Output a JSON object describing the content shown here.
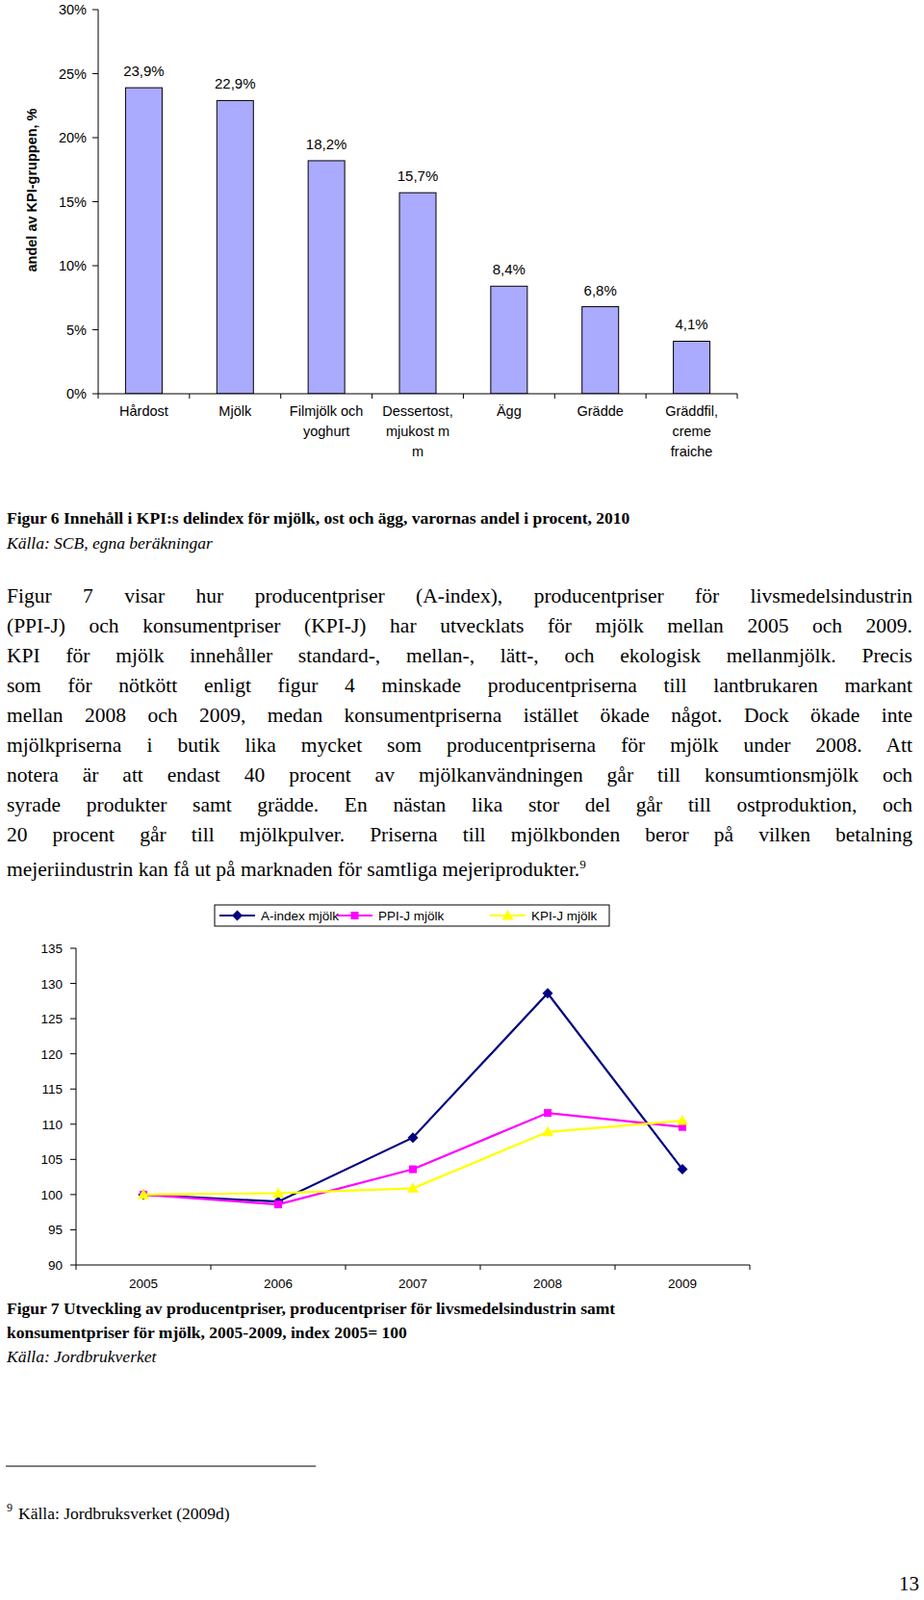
{
  "chart_data": [
    {
      "type": "bar",
      "y_label": "andel av KPI-gruppen, %",
      "categories": [
        "Hårdost",
        "Mjölk",
        "Filmjölk och\nyoghurt",
        "Dessertost,\nmjukost m\nm",
        "Ägg",
        "Grädde",
        "Gräddfil,\ncreme\nfraiche"
      ],
      "values": [
        23.9,
        22.9,
        18.2,
        15.7,
        8.4,
        6.8,
        4.1
      ],
      "value_labels": [
        "23,9%",
        "22,9%",
        "18,2%",
        "15,7%",
        "8,4%",
        "6,8%",
        "4,1%"
      ],
      "data_labels": true,
      "color": "#aaaaff",
      "ylim": [
        0,
        30
      ],
      "yticks": [
        {
          "value": 0,
          "label": "0%"
        },
        {
          "value": 5,
          "label": "5%"
        },
        {
          "value": 10,
          "label": "10%"
        },
        {
          "value": 15,
          "label": "15%"
        },
        {
          "value": 20,
          "label": "20%"
        },
        {
          "value": 25,
          "label": "25%"
        },
        {
          "value": 30,
          "label": "30%"
        }
      ],
      "grid": false
    },
    {
      "type": "line",
      "categories": [
        "2005",
        "2006",
        "2007",
        "2008",
        "2009"
      ],
      "series": [
        {
          "name": "A-index mjölk",
          "color": "#000080",
          "marker": "diamond",
          "values": [
            100,
            99.0,
            108.1,
            128.6,
            103.6
          ]
        },
        {
          "name": "PPI-J mjölk",
          "color": "#ff00ff",
          "marker": "square",
          "values": [
            100,
            98.6,
            103.6,
            111.6,
            109.6
          ]
        },
        {
          "name": "KPI-J mjölk",
          "color": "#ffff00",
          "marker": "triangle",
          "values": [
            100,
            100.2,
            100.9,
            108.9,
            110.5
          ]
        }
      ],
      "ylim": [
        90,
        135
      ],
      "yticks": [
        90,
        95,
        100,
        105,
        110,
        115,
        120,
        125,
        130,
        135
      ],
      "legend": "top",
      "grid": false
    }
  ],
  "document": {
    "figure6_caption": {
      "title": "Figur 6 Innehåll i KPI:s delindex för mjölk, ost och ägg, varornas andel i procent, 2010",
      "source": "Källa: SCB, egna beräkningar"
    },
    "paragraph": {
      "lines": [
        "Figur 7 visar hur producentpriser (A-index), producentpriser för livsmedelsindustrin",
        "(PPI-J) och konsumentpriser (KPI-J) har utvecklats för mjölk mellan 2005 och 2009.",
        "KPI för mjölk innehåller standard-, mellan-, lätt-, och ekologisk mellanmjölk. Precis",
        "som för nötkött enligt figur 4 minskade producentpriserna till lantbrukaren markant",
        "mellan 2008 och 2009, medan konsumentpriserna istället ökade något. Dock ökade inte",
        "mjölkpriserna i butik lika mycket som producentpriserna för mjölk under 2008. Att",
        "notera är att endast 40 procent av mjölkanvändningen går till konsumtionsmjölk och",
        "syrade produkter samt grädde. En nästan lika stor del går till ostproduktion, och",
        "20 procent går till mjölkpulver. Priserna till mjölkbonden beror på vilken betalning",
        "mejeriindustrin kan få ut på marknaden för samtliga mejeriprodukter."
      ],
      "footnote_ref": "9"
    },
    "figure7_caption": {
      "lines": [
        "Figur 7 Utveckling av producentpriser, producentpriser för livsmedelsindustrin samt",
        "konsumentpriser för mjölk, 2005-2009, index 2005= 100"
      ],
      "source": "Källa: Jordbrukverket"
    },
    "footnote": {
      "number": "9",
      "text": "Källa: Jordbruksverket (2009d)"
    },
    "page_number": "13"
  }
}
